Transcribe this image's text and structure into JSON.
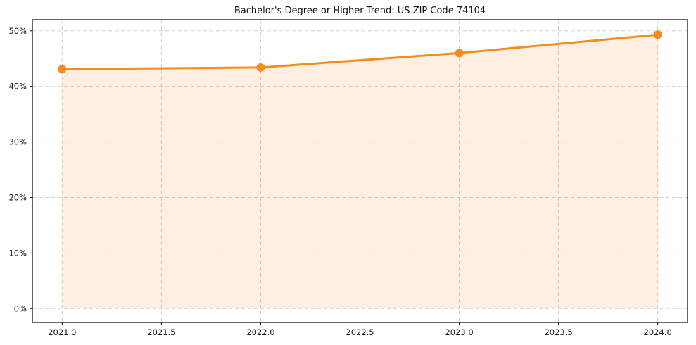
{
  "chart_data": {
    "type": "area",
    "title": "Bachelor's Degree or Higher Trend: US ZIP Code 74104",
    "xlabel": "",
    "ylabel": "",
    "x": [
      2021,
      2022,
      2023,
      2024
    ],
    "values": [
      43.1,
      43.4,
      46.0,
      49.3
    ],
    "series_name": "Bachelor's Degree or Higher (%)",
    "x_ticks": [
      2021.0,
      2021.5,
      2022.0,
      2022.5,
      2023.0,
      2023.5,
      2024.0
    ],
    "x_tick_labels": [
      "2021.0",
      "2021.5",
      "2022.0",
      "2022.5",
      "2023.0",
      "2023.5",
      "2024.0"
    ],
    "y_ticks": [
      0,
      10,
      20,
      30,
      40,
      50
    ],
    "y_tick_labels": [
      "0%",
      "10%",
      "20%",
      "30%",
      "40%",
      "50%"
    ],
    "xlim": [
      2020.85,
      2024.15
    ],
    "ylim": [
      -2.5,
      52.0
    ],
    "grid": true,
    "grid_style": "dashed",
    "legend": "none",
    "line_color": "#f68b1e",
    "marker_color": "#f68b1e",
    "fill_color": "#ff7f0e",
    "fill_opacity": 0.12,
    "grid_color": "#cfcfcf",
    "border_color": "#000000",
    "background_color": "#ffffff",
    "line_width": 3,
    "marker_radius": 6
  }
}
